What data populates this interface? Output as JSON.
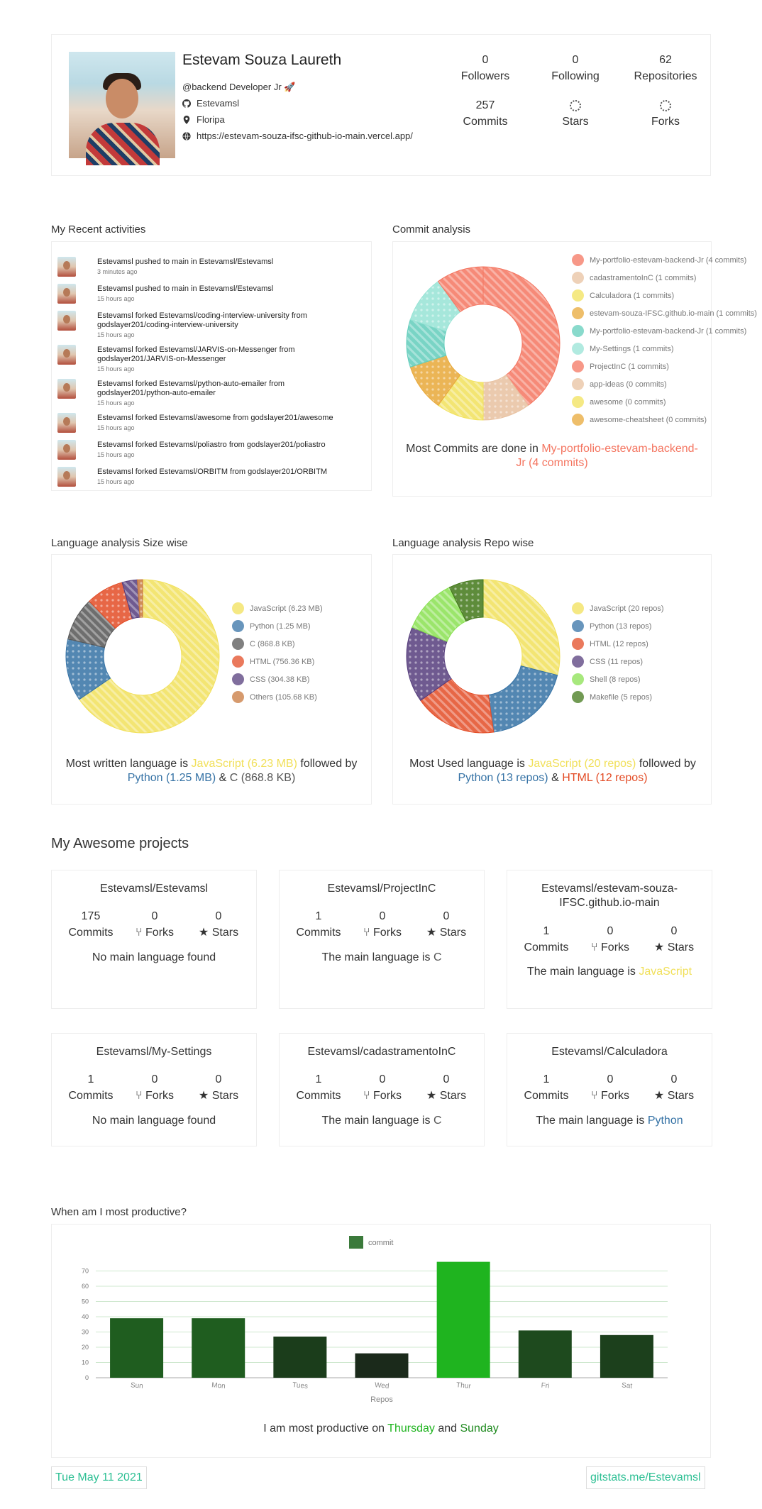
{
  "profile": {
    "name": "Estevam Souza Laureth",
    "bio": "@backend Developer Jr 🚀",
    "github": "Estevamsl",
    "location": "Floripa",
    "website": "https://estevam-souza-ifsc-github-io-main.vercel.app/",
    "stats": [
      {
        "value": "0",
        "label": "Followers"
      },
      {
        "value": "0",
        "label": "Following"
      },
      {
        "value": "62",
        "label": "Repositories"
      },
      {
        "value": "257",
        "label": "Commits"
      },
      {
        "value": "",
        "label": "Stars"
      },
      {
        "value": "",
        "label": "Forks"
      }
    ]
  },
  "recent": {
    "title": "My Recent activities",
    "items": [
      {
        "text": "Estevamsl pushed to main in Estevamsl/Estevamsl",
        "time": "3 minutes ago"
      },
      {
        "text": "Estevamsl pushed to main in Estevamsl/Estevamsl",
        "time": "15 hours ago"
      },
      {
        "text": "Estevamsl forked Estevamsl/coding-interview-university from godslayer201/coding-interview-university",
        "time": "15 hours ago"
      },
      {
        "text": "Estevamsl forked Estevamsl/JARVIS-on-Messenger from godslayer201/JARVIS-on-Messenger",
        "time": "15 hours ago"
      },
      {
        "text": "Estevamsl forked Estevamsl/python-auto-emailer from godslayer201/python-auto-emailer",
        "time": "15 hours ago"
      },
      {
        "text": "Estevamsl forked Estevamsl/awesome from godslayer201/awesome",
        "time": "15 hours ago"
      },
      {
        "text": "Estevamsl forked Estevamsl/poliastro from godslayer201/poliastro",
        "time": "15 hours ago"
      },
      {
        "text": "Estevamsl forked Estevamsl/ORBITM from godslayer201/ORBITM",
        "time": "15 hours ago"
      }
    ]
  },
  "commit_analysis": {
    "title": "Commit analysis",
    "legend": [
      {
        "label": "My-portfolio-estevam-backend-Jr (4 commits)",
        "color": "#f47560"
      },
      {
        "label": "cadastramentoInC (1 commits)",
        "color": "#e8c1a0"
      },
      {
        "label": "Calculadora (1 commits)",
        "color": "#f1e15b"
      },
      {
        "label": "estevam-souza-IFSC.github.io-main (1 commits)",
        "color": "#e8a838"
      },
      {
        "label": "My-portfolio-estevam-backend-Jr (1 commits)",
        "color": "#61cdbb"
      },
      {
        "label": "My-Settings (1 commits)",
        "color": "#97e3d5"
      },
      {
        "label": "ProjectInC (1 commits)",
        "color": "#f47560"
      },
      {
        "label": "app-ideas (0 commits)",
        "color": "#e8c1a0"
      },
      {
        "label": "awesome (0 commits)",
        "color": "#f1e15b"
      },
      {
        "label": "awesome-cheatsheet (0 commits)",
        "color": "#e8a838"
      }
    ],
    "summary_prefix": "Most Commits are done in ",
    "summary_highlight": "My-portfolio-estevam-backend-Jr (4 commits)",
    "highlight_color": "#f47560"
  },
  "lang_size": {
    "title": "Language analysis Size wise",
    "legend": [
      {
        "label": "JavaScript (6.23 MB)",
        "color": "#f1e05a"
      },
      {
        "label": "Python (1.25 MB)",
        "color": "#3572A5"
      },
      {
        "label": "C (868.8 KB)",
        "color": "#555555"
      },
      {
        "label": "HTML (756.36 KB)",
        "color": "#e34c26"
      },
      {
        "label": "CSS (304.38 KB)",
        "color": "#563d7c"
      },
      {
        "label": "Others (105.68 KB)",
        "color": "#c8783c"
      }
    ],
    "s1": "Most written language is ",
    "h1": "JavaScript (6.23 MB)",
    "s2": " followed by",
    "h2": "Python (1.25 MB)",
    "s3": " & ",
    "h3": "C (868.8 KB)"
  },
  "lang_repo": {
    "title": "Language analysis Repo wise",
    "legend": [
      {
        "label": "JavaScript (20 repos)",
        "color": "#f1e05a"
      },
      {
        "label": "Python (13 repos)",
        "color": "#3572A5"
      },
      {
        "label": "HTML (12 repos)",
        "color": "#e34c26"
      },
      {
        "label": "CSS (11 repos)",
        "color": "#563d7c"
      },
      {
        "label": "Shell (8 repos)",
        "color": "#89e051"
      },
      {
        "label": "Makefile (5 repos)",
        "color": "#427819"
      }
    ],
    "s1": "Most Used language is ",
    "h1": "JavaScript (20 repos)",
    "s2": " followed by",
    "h2": "Python (13 repos)",
    "s3": " & ",
    "h3": "HTML (12 repos)"
  },
  "projects": {
    "title": "My Awesome projects",
    "items": [
      {
        "name": "Estevamsl/Estevamsl",
        "commits": "175",
        "forks": "0",
        "stars": "0",
        "lang_prefix": "No main language found",
        "lang": "",
        "lang_color": "#333"
      },
      {
        "name": "Estevamsl/ProjectInC",
        "commits": "1",
        "forks": "0",
        "stars": "0",
        "lang_prefix": "The main language is ",
        "lang": "C",
        "lang_color": "#555555"
      },
      {
        "name": "Estevamsl/estevam-souza-IFSC.github.io-main",
        "commits": "1",
        "forks": "0",
        "stars": "0",
        "lang_prefix": "The main language is ",
        "lang": "JavaScript",
        "lang_color": "#f1e05a"
      },
      {
        "name": "Estevamsl/My-Settings",
        "commits": "1",
        "forks": "0",
        "stars": "0",
        "lang_prefix": "No main language found",
        "lang": "",
        "lang_color": "#333"
      },
      {
        "name": "Estevamsl/cadastramentoInC",
        "commits": "1",
        "forks": "0",
        "stars": "0",
        "lang_prefix": "The main language is ",
        "lang": "C",
        "lang_color": "#555555"
      },
      {
        "name": "Estevamsl/Calculadora",
        "commits": "1",
        "forks": "0",
        "stars": "0",
        "lang_prefix": "The main language is ",
        "lang": "Python",
        "lang_color": "#3572A5"
      }
    ],
    "labels": {
      "commits": "Commits",
      "forks": "Forks",
      "stars": "Stars"
    }
  },
  "productivity": {
    "title": "When am I most productive?",
    "summary_prefix": "I am most productive on ",
    "day1": "Thursday",
    "mid": " and ",
    "day2": "Sunday"
  },
  "footer": {
    "date": "Tue May 11 2021",
    "link": "gitstats.me/Estevamsl"
  },
  "chart_data": [
    {
      "type": "pie",
      "title": "Commit analysis",
      "categories": [
        "My-portfolio-estevam-backend-Jr",
        "cadastramentoInC",
        "Calculadora",
        "estevam-souza-IFSC.github.io-main",
        "My-portfolio-estevam-backend-Jr",
        "My-Settings",
        "ProjectInC",
        "app-ideas",
        "awesome",
        "awesome-cheatsheet"
      ],
      "values": [
        4,
        1,
        1,
        1,
        1,
        1,
        1,
        0,
        0,
        0
      ],
      "colors": [
        "#f47560",
        "#e8c1a0",
        "#f1e15b",
        "#e8a838",
        "#61cdbb",
        "#97e3d5",
        "#f47560",
        "#e8c1a0",
        "#f1e15b",
        "#e8a838"
      ]
    },
    {
      "type": "pie",
      "title": "Language analysis Size wise",
      "categories": [
        "JavaScript",
        "Python",
        "C",
        "HTML",
        "CSS",
        "Others"
      ],
      "values": [
        6.23,
        1.25,
        0.8688,
        0.75636,
        0.30438,
        0.10568
      ],
      "unit": "MB",
      "colors": [
        "#f1e05a",
        "#3572A5",
        "#555555",
        "#e34c26",
        "#563d7c",
        "#c8783c"
      ]
    },
    {
      "type": "pie",
      "title": "Language analysis Repo wise",
      "categories": [
        "JavaScript",
        "Python",
        "HTML",
        "CSS",
        "Shell",
        "Makefile"
      ],
      "values": [
        20,
        13,
        12,
        11,
        8,
        5
      ],
      "colors": [
        "#f1e05a",
        "#3572A5",
        "#e34c26",
        "#563d7c",
        "#89e051",
        "#427819"
      ]
    },
    {
      "type": "bar",
      "title": "When am I most productive?",
      "categories": [
        "Sun",
        "Mon",
        "Tues",
        "Wed",
        "Thur",
        "Fri",
        "Sat"
      ],
      "series": [
        {
          "name": "commit",
          "values": [
            39,
            39,
            27,
            16,
            76,
            31,
            28
          ]
        }
      ],
      "colors": [
        "#1f5d1f",
        "#1f5d1f",
        "#1b3d1b",
        "#1b2a1b",
        "#1fb41f",
        "#1e4a1e",
        "#1c401c"
      ],
      "xlabel": "Repos",
      "ylabel": "",
      "ylim": [
        0,
        80
      ],
      "yticks": [
        0,
        10,
        20,
        30,
        40,
        50,
        60,
        70
      ]
    }
  ]
}
